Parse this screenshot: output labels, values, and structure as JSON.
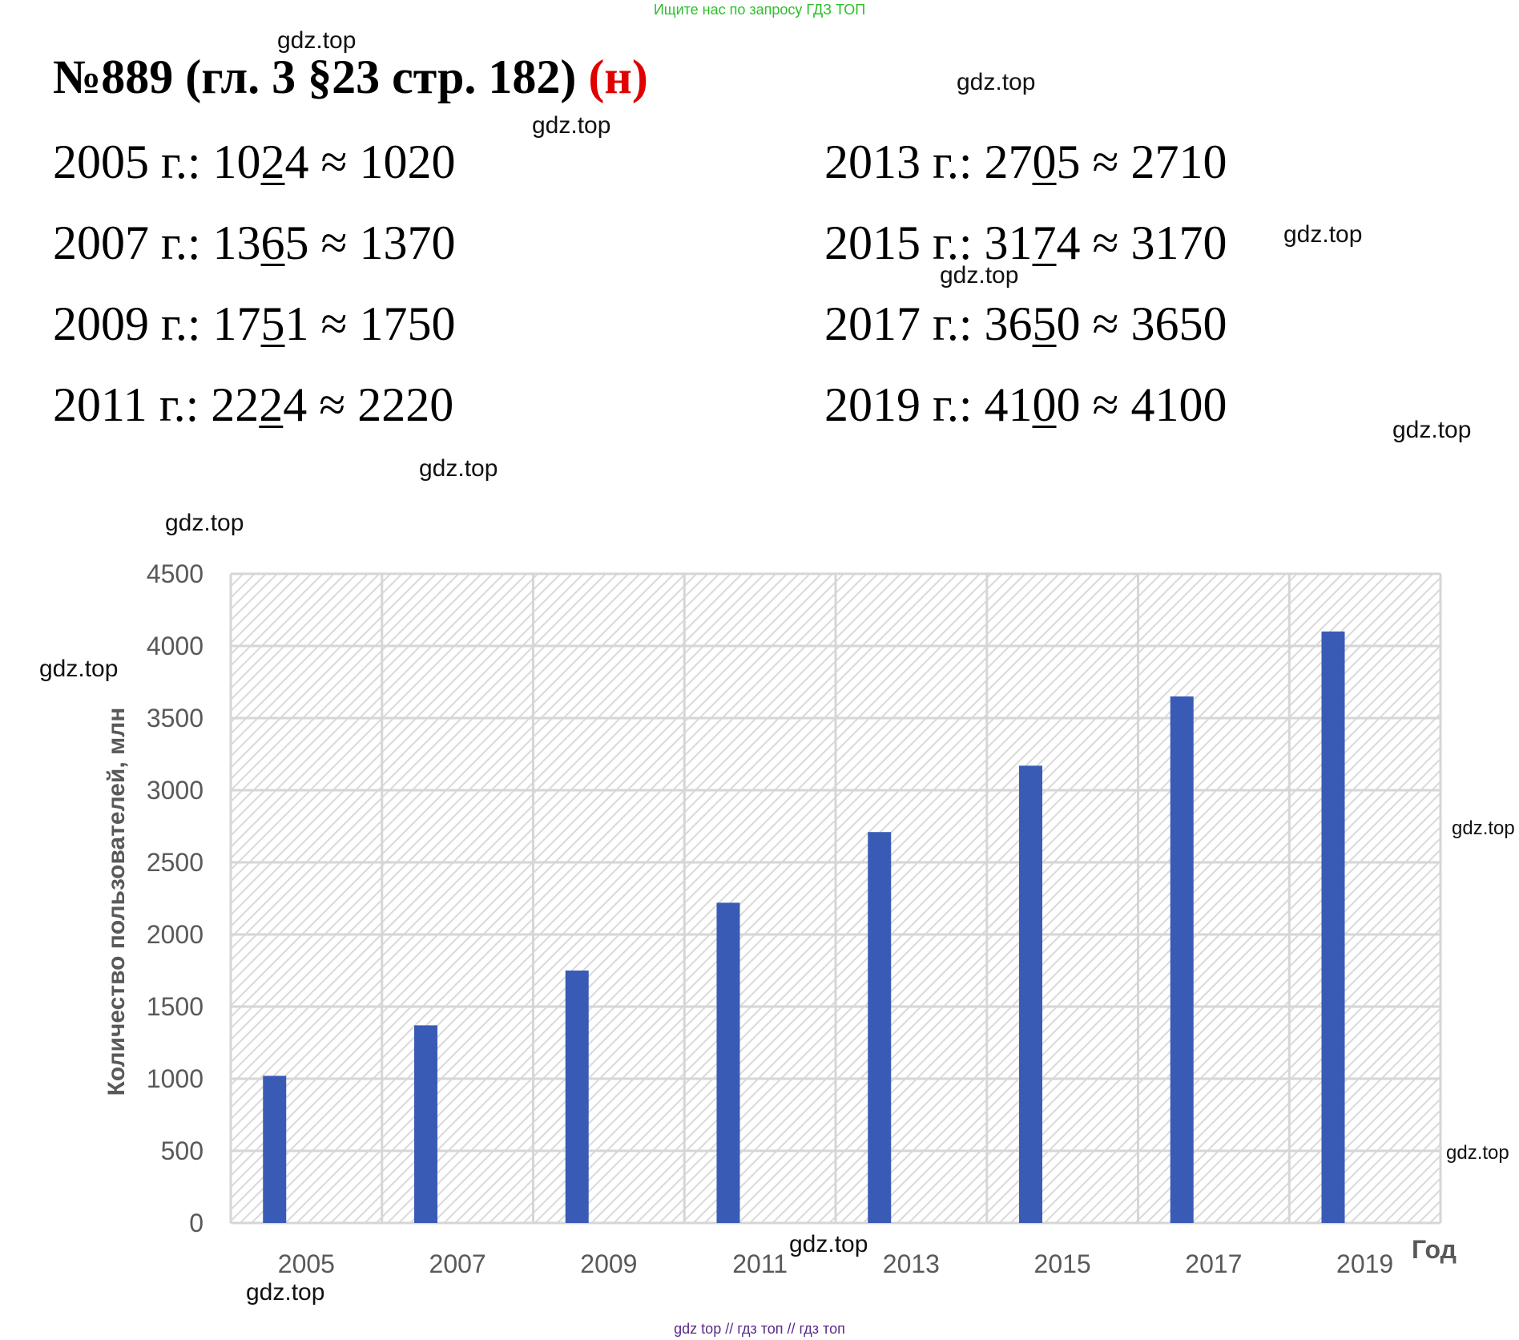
{
  "banner_top": "Ищите нас по запросу ГДЗ ТОП",
  "title": {
    "main": "№889 (гл. 3 §23 стр. 182)",
    "mark": "(н)"
  },
  "answers": [
    {
      "year_label": "2005 г.: ",
      "pre": "10",
      "digit": "2",
      "post": "4",
      "approx": " ≈ 1020"
    },
    {
      "year_label": "2007 г.: ",
      "pre": "13",
      "digit": "6",
      "post": "5",
      "approx": " ≈ 1370"
    },
    {
      "year_label": "2009 г.: ",
      "pre": "17",
      "digit": "5",
      "post": "1",
      "approx": " ≈ 1750"
    },
    {
      "year_label": "2011 г.: ",
      "pre": "22",
      "digit": "2",
      "post": "4",
      "approx": " ≈ 2220"
    },
    {
      "year_label": "2013 г.: ",
      "pre": "27",
      "digit": "0",
      "post": "5",
      "approx": " ≈ 2710"
    },
    {
      "year_label": "2015 г.: ",
      "pre": "31",
      "digit": "7",
      "post": "4",
      "approx": " ≈ 3170"
    },
    {
      "year_label": "2017 г.: ",
      "pre": "36",
      "digit": "5",
      "post": "0",
      "approx": " ≈ 3650"
    },
    {
      "year_label": "2019 г.: ",
      "pre": "41",
      "digit": "0",
      "post": "0",
      "approx": " ≈ 4100"
    }
  ],
  "watermark": "gdz.top",
  "banner_bottom": "gdz top  //  гдз топ  //  гдз топ",
  "colors": {
    "bar": "#3a5bb5",
    "grid": "#d6d6d6",
    "hatch": "#d9d9d9",
    "title_mark": "#e00000"
  },
  "chart_data": {
    "type": "bar",
    "categories": [
      "2005",
      "2007",
      "2009",
      "2011",
      "2013",
      "2015",
      "2017",
      "2019"
    ],
    "values": [
      1020,
      1370,
      1750,
      2220,
      2710,
      3170,
      3650,
      4100
    ],
    "yticks": [
      "0",
      "500",
      "1000",
      "1500",
      "2000",
      "2500",
      "3000",
      "3500",
      "4000",
      "4500"
    ],
    "ylim": [
      0,
      4500
    ],
    "xlabel": "Год",
    "ylabel": "Количество пользователей, млн",
    "grid": true,
    "legend": "none"
  }
}
